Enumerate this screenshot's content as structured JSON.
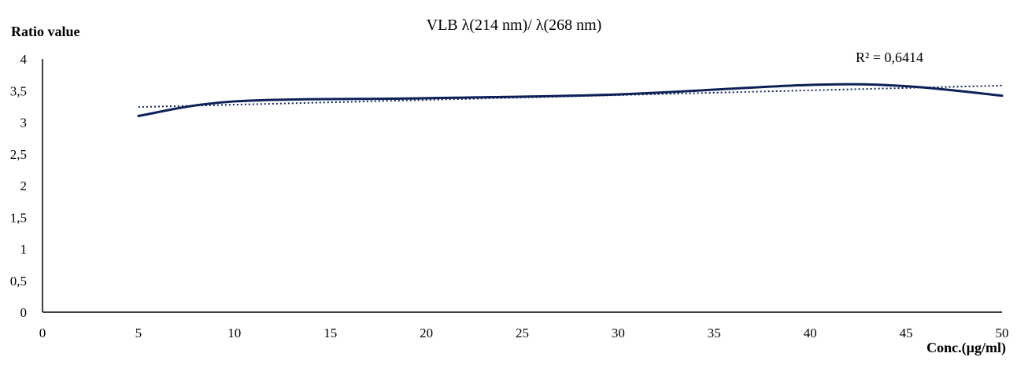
{
  "chart_data": {
    "type": "line",
    "title": "VLB λ(214 nm)/ λ(268 nm)",
    "xlabel": "Conc.(µg/ml)",
    "ylabel": "Ratio value",
    "xlim": [
      0,
      50
    ],
    "ylim": [
      0,
      4
    ],
    "x_ticks": [
      "0",
      "5",
      "10",
      "15",
      "20",
      "25",
      "30",
      "35",
      "40",
      "45",
      "50"
    ],
    "y_ticks": [
      "0",
      "0,5",
      "1",
      "1,5",
      "2",
      "2,5",
      "3",
      "3,5",
      "4"
    ],
    "grid": false,
    "series": [
      {
        "style": "smooth-line",
        "color": "#0d2158",
        "x": [
          5,
          10,
          20,
          30,
          40,
          45,
          50
        ],
        "y": [
          3.1,
          3.33,
          3.38,
          3.44,
          3.59,
          3.57,
          3.42
        ]
      },
      {
        "style": "dotted-trendline",
        "color": "#0d2158",
        "x": [
          5,
          50
        ],
        "y": [
          3.24,
          3.58
        ]
      }
    ],
    "annotations": [
      {
        "text": "R² = 0,6414",
        "position": "top-right"
      }
    ]
  }
}
